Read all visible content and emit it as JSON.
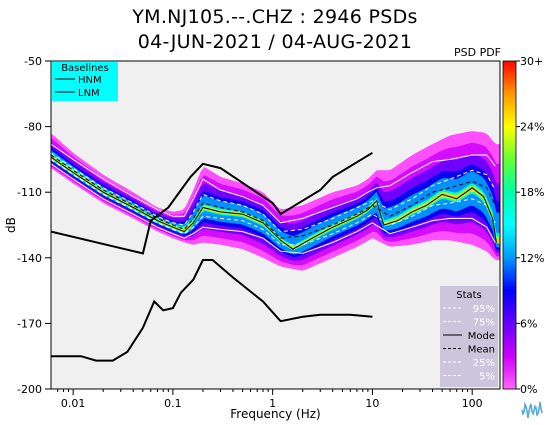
{
  "title": "YM.NJ105.--.CHZ : 2946 PSDs",
  "subtitle": "04-JUN-2021 / 04-AUG-2021",
  "colorbar_title": "PSD PDF",
  "chart_data": {
    "type": "heatmap",
    "xlabel": "Frequency (Hz)",
    "ylabel": "dB",
    "x_scale": "log",
    "xlim": [
      0.006,
      190
    ],
    "ylim": [
      -200,
      -50
    ],
    "x_ticks": [
      0.01,
      0.1,
      1,
      10,
      100
    ],
    "x_tick_labels": [
      "0.01",
      "0.1",
      "1",
      "10",
      "100"
    ],
    "y_ticks": [
      -50,
      -80,
      -110,
      -140,
      -170,
      -200
    ],
    "y_tick_labels": [
      "-50",
      "-80",
      "-110",
      "-140",
      "-170",
      "-200"
    ],
    "grid": false,
    "colorbar": {
      "tick_labels": [
        "30+",
        "24%",
        "18%",
        "12%",
        "6%",
        "0%"
      ],
      "stops": [
        "#ff0000",
        "#ff9900",
        "#ffff00",
        "#66ff33",
        "#00ffaa",
        "#00ffff",
        "#0099ff",
        "#0000ff",
        "#6600ff",
        "#cc00ff",
        "#ff66ff"
      ]
    },
    "baselines": {
      "title": "Baselines",
      "legend_position": "top-left",
      "background": "#00ffff",
      "entries": [
        "HNM",
        "LNM"
      ],
      "HNM": [
        [
          0.006,
          -128
        ],
        [
          0.05,
          -138
        ],
        [
          0.06,
          -123
        ],
        [
          0.09,
          -117
        ],
        [
          0.15,
          -103
        ],
        [
          0.2,
          -97
        ],
        [
          0.3,
          -99
        ],
        [
          1,
          -115
        ],
        [
          1.2,
          -120
        ],
        [
          3,
          -109
        ],
        [
          4,
          -103
        ],
        [
          10,
          -92
        ]
      ],
      "LNM": [
        [
          0.006,
          -185
        ],
        [
          0.012,
          -185
        ],
        [
          0.017,
          -187
        ],
        [
          0.025,
          -187
        ],
        [
          0.035,
          -183
        ],
        [
          0.05,
          -172
        ],
        [
          0.065,
          -160
        ],
        [
          0.08,
          -164
        ],
        [
          0.1,
          -163
        ],
        [
          0.12,
          -156
        ],
        [
          0.16,
          -150
        ],
        [
          0.2,
          -141
        ],
        [
          0.25,
          -141
        ],
        [
          0.4,
          -149
        ],
        [
          0.8,
          -160
        ],
        [
          1.2,
          -169
        ],
        [
          2,
          -167
        ],
        [
          3,
          -166
        ],
        [
          6,
          -166
        ],
        [
          10,
          -167
        ]
      ]
    },
    "stats": {
      "title": "Stats",
      "legend_position": "bottom-right",
      "entries": [
        {
          "name": "95%",
          "style": "dashed",
          "color": "#ffffff"
        },
        {
          "name": "75%",
          "style": "dashed",
          "color": "#ffffff"
        },
        {
          "name": "Mode",
          "style": "solid",
          "color": "#000000"
        },
        {
          "name": "Mean",
          "style": "dashed",
          "color": "#000000"
        },
        {
          "name": "25%",
          "style": "dashed",
          "color": "#ffffff"
        },
        {
          "name": "5%",
          "style": "dashed",
          "color": "#ffffff"
        }
      ]
    },
    "mode_curve": [
      [
        0.006,
        -94
      ],
      [
        0.01,
        -101
      ],
      [
        0.02,
        -110
      ],
      [
        0.04,
        -117
      ],
      [
        0.07,
        -123
      ],
      [
        0.1,
        -126
      ],
      [
        0.13,
        -128
      ],
      [
        0.16,
        -124
      ],
      [
        0.2,
        -117
      ],
      [
        0.3,
        -119
      ],
      [
        0.5,
        -120
      ],
      [
        0.8,
        -124
      ],
      [
        1.2,
        -132
      ],
      [
        1.6,
        -136
      ],
      [
        2.5,
        -131
      ],
      [
        4,
        -126
      ],
      [
        7,
        -121
      ],
      [
        9,
        -118
      ],
      [
        11,
        -114
      ],
      [
        13,
        -125
      ],
      [
        18,
        -123
      ],
      [
        25,
        -119
      ],
      [
        35,
        -116
      ],
      [
        50,
        -111
      ],
      [
        70,
        -113
      ],
      [
        100,
        -108
      ],
      [
        130,
        -112
      ],
      [
        160,
        -122
      ],
      [
        175,
        -133
      ]
    ],
    "percentile_95": [
      [
        0.006,
        -88
      ],
      [
        0.01,
        -95
      ],
      [
        0.02,
        -104
      ],
      [
        0.04,
        -112
      ],
      [
        0.07,
        -118
      ],
      [
        0.1,
        -121
      ],
      [
        0.13,
        -121
      ],
      [
        0.16,
        -113
      ],
      [
        0.2,
        -104
      ],
      [
        0.3,
        -109
      ],
      [
        0.5,
        -112
      ],
      [
        0.8,
        -116
      ],
      [
        1.2,
        -124
      ],
      [
        2,
        -122
      ],
      [
        4,
        -117
      ],
      [
        7,
        -113
      ],
      [
        9,
        -110
      ],
      [
        11,
        -108
      ],
      [
        15,
        -107
      ],
      [
        25,
        -101
      ],
      [
        40,
        -96
      ],
      [
        60,
        -95
      ],
      [
        100,
        -93
      ],
      [
        140,
        -93
      ],
      [
        170,
        -98
      ]
    ],
    "percentile_75": [
      [
        0.006,
        -92
      ],
      [
        0.01,
        -99
      ],
      [
        0.02,
        -108
      ],
      [
        0.04,
        -115
      ],
      [
        0.07,
        -121
      ],
      [
        0.1,
        -124
      ],
      [
        0.13,
        -125
      ],
      [
        0.16,
        -119
      ],
      [
        0.2,
        -111
      ],
      [
        0.3,
        -114
      ],
      [
        0.5,
        -116
      ],
      [
        0.8,
        -120
      ],
      [
        1.2,
        -128
      ],
      [
        2,
        -127
      ],
      [
        4,
        -122
      ],
      [
        7,
        -117
      ],
      [
        10,
        -114
      ],
      [
        15,
        -118
      ],
      [
        25,
        -113
      ],
      [
        40,
        -107
      ],
      [
        60,
        -104
      ],
      [
        100,
        -100
      ],
      [
        140,
        -102
      ],
      [
        170,
        -109
      ]
    ],
    "mean_curve": [
      [
        0.006,
        -93
      ],
      [
        0.01,
        -100
      ],
      [
        0.02,
        -109
      ],
      [
        0.04,
        -116
      ],
      [
        0.07,
        -122
      ],
      [
        0.1,
        -125
      ],
      [
        0.13,
        -127
      ],
      [
        0.16,
        -122
      ],
      [
        0.2,
        -115
      ],
      [
        0.3,
        -117
      ],
      [
        0.5,
        -119
      ],
      [
        0.8,
        -123
      ],
      [
        1.2,
        -131
      ],
      [
        2,
        -130
      ],
      [
        4,
        -125
      ],
      [
        7,
        -120
      ],
      [
        10,
        -116
      ],
      [
        15,
        -121
      ],
      [
        25,
        -116
      ],
      [
        40,
        -110
      ],
      [
        60,
        -108
      ],
      [
        100,
        -105
      ],
      [
        140,
        -108
      ],
      [
        170,
        -116
      ]
    ],
    "percentile_25": [
      [
        0.006,
        -95
      ],
      [
        0.01,
        -102
      ],
      [
        0.02,
        -111
      ],
      [
        0.04,
        -118
      ],
      [
        0.07,
        -124
      ],
      [
        0.1,
        -127
      ],
      [
        0.13,
        -129
      ],
      [
        0.16,
        -126
      ],
      [
        0.2,
        -121
      ],
      [
        0.3,
        -122
      ],
      [
        0.5,
        -123
      ],
      [
        0.8,
        -127
      ],
      [
        1.2,
        -134
      ],
      [
        2,
        -134
      ],
      [
        4,
        -129
      ],
      [
        7,
        -124
      ],
      [
        10,
        -120
      ],
      [
        15,
        -125
      ],
      [
        25,
        -121
      ],
      [
        40,
        -116
      ],
      [
        60,
        -115
      ],
      [
        100,
        -113
      ],
      [
        140,
        -116
      ],
      [
        170,
        -124
      ]
    ],
    "percentile_5": [
      [
        0.006,
        -97
      ],
      [
        0.01,
        -104
      ],
      [
        0.02,
        -113
      ],
      [
        0.04,
        -120
      ],
      [
        0.07,
        -126
      ],
      [
        0.1,
        -129
      ],
      [
        0.13,
        -131
      ],
      [
        0.16,
        -129
      ],
      [
        0.2,
        -126
      ],
      [
        0.3,
        -127
      ],
      [
        0.5,
        -128
      ],
      [
        0.8,
        -131
      ],
      [
        1.2,
        -137
      ],
      [
        2,
        -138
      ],
      [
        4,
        -133
      ],
      [
        7,
        -128
      ],
      [
        10,
        -124
      ],
      [
        15,
        -129
      ],
      [
        25,
        -126
      ],
      [
        40,
        -123
      ],
      [
        60,
        -122
      ],
      [
        100,
        -122
      ],
      [
        140,
        -126
      ],
      [
        170,
        -133
      ]
    ],
    "pdf_upper_envelope": [
      [
        0.006,
        -83
      ],
      [
        0.01,
        -92
      ],
      [
        0.02,
        -102
      ],
      [
        0.04,
        -110
      ],
      [
        0.07,
        -117
      ],
      [
        0.1,
        -119
      ],
      [
        0.13,
        -118
      ],
      [
        0.16,
        -109
      ],
      [
        0.2,
        -98
      ],
      [
        0.3,
        -103
      ],
      [
        0.5,
        -106
      ],
      [
        0.8,
        -110
      ],
      [
        1.2,
        -118
      ],
      [
        2,
        -116
      ],
      [
        4,
        -110
      ],
      [
        7,
        -107
      ],
      [
        9,
        -104
      ],
      [
        11,
        -100
      ],
      [
        15,
        -100
      ],
      [
        25,
        -93
      ],
      [
        40,
        -88
      ],
      [
        60,
        -84
      ],
      [
        100,
        -82
      ],
      [
        140,
        -83
      ],
      [
        170,
        -88
      ]
    ],
    "pdf_lower_envelope": [
      [
        0.006,
        -99
      ],
      [
        0.01,
        -106
      ],
      [
        0.02,
        -115
      ],
      [
        0.04,
        -122
      ],
      [
        0.07,
        -128
      ],
      [
        0.1,
        -131
      ],
      [
        0.13,
        -133
      ],
      [
        0.16,
        -134
      ],
      [
        0.2,
        -133
      ],
      [
        0.3,
        -134
      ],
      [
        0.5,
        -136
      ],
      [
        0.8,
        -140
      ],
      [
        1.2,
        -144
      ],
      [
        2,
        -146
      ],
      [
        4,
        -140
      ],
      [
        7,
        -135
      ],
      [
        10,
        -131
      ],
      [
        15,
        -135
      ],
      [
        25,
        -134
      ],
      [
        40,
        -132
      ],
      [
        60,
        -132
      ],
      [
        100,
        -134
      ],
      [
        140,
        -137
      ],
      [
        170,
        -141
      ]
    ]
  }
}
